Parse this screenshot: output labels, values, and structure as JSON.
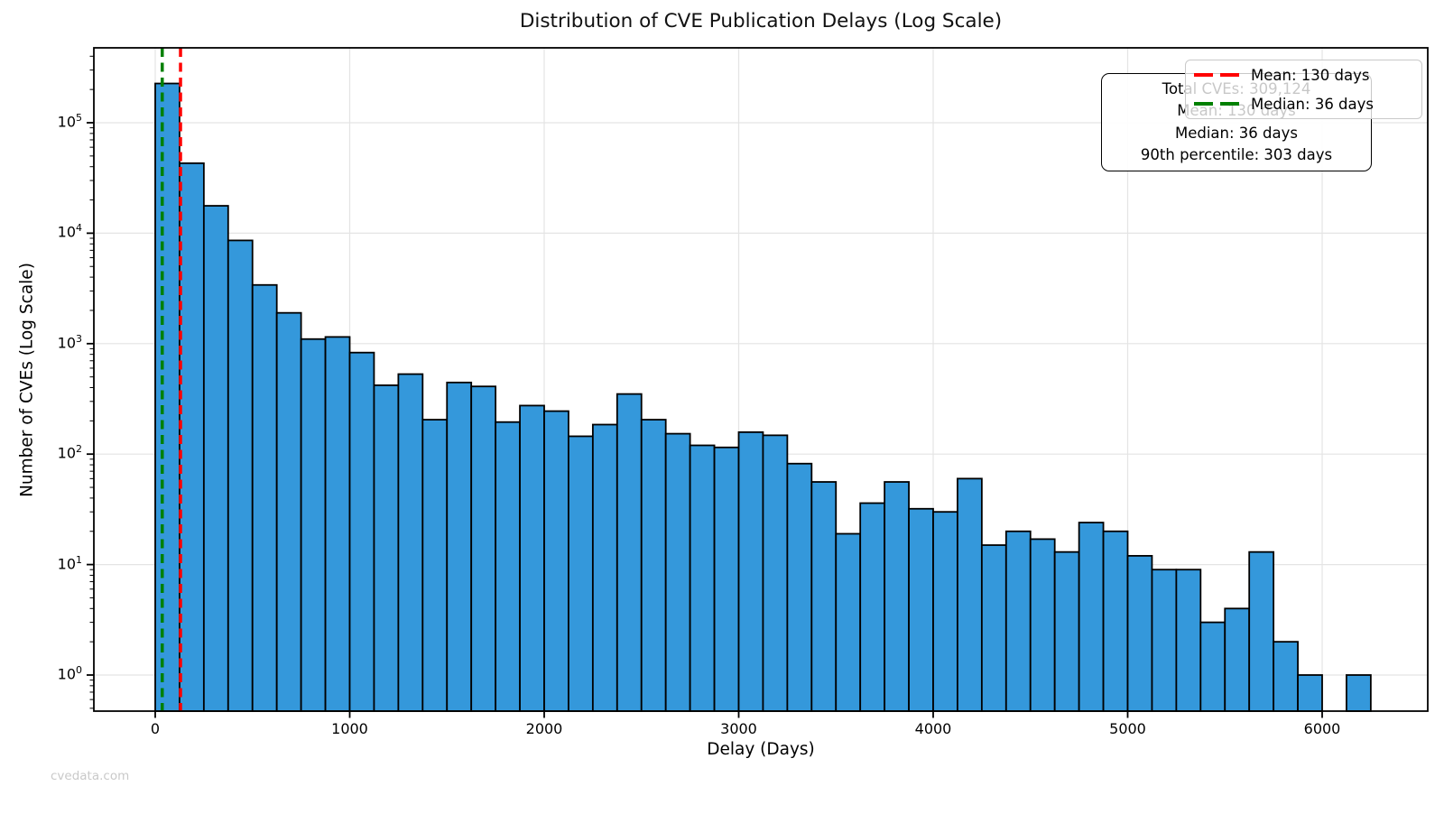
{
  "watermark": "cvedata.com",
  "stats_box": {
    "lines": [
      "Total CVEs: 309,124",
      "Mean: 130 days",
      "Median: 36 days",
      "90th percentile: 303 days"
    ]
  },
  "legend": {
    "items": [
      {
        "label": "Mean: 130 days",
        "color": "#ff0000",
        "style": "dashed"
      },
      {
        "label": "Median: 36 days",
        "color": "#008000",
        "style": "dashed"
      }
    ]
  },
  "chart_data": {
    "type": "bar",
    "subtype": "histogram",
    "title": "Distribution of CVE Publication Delays (Log Scale)",
    "xlabel": "Delay (Days)",
    "ylabel": "Number of CVEs (Log Scale)",
    "y_scale": "log",
    "bin_width_days": 125,
    "bin_start_days": 0,
    "counts": [
      226606,
      43000,
      17700,
      8600,
      3400,
      1900,
      1100,
      1150,
      830,
      420,
      530,
      205,
      445,
      410,
      195,
      275,
      245,
      145,
      185,
      350,
      205,
      153,
      120,
      115,
      158,
      148,
      82,
      56,
      19,
      36,
      56,
      32,
      30,
      60,
      15,
      20,
      17,
      13,
      24,
      20,
      12,
      9,
      9,
      3,
      4,
      13,
      2,
      1,
      0,
      1
    ],
    "x_ticks": [
      0,
      1000,
      2000,
      3000,
      4000,
      5000,
      6000
    ],
    "y_tick_exponents": [
      0,
      1,
      2,
      3,
      4,
      5
    ],
    "xlim_days": [
      -315,
      6540
    ],
    "ylim": [
      0.47,
      480000
    ],
    "grid": true,
    "legend_position": "upper right",
    "mean_days": 130,
    "median_days": 36,
    "percentile_90_days": 303,
    "total_cves": 309124,
    "colors": {
      "bar_fill": "#3498db",
      "bar_edge": "#000000",
      "mean_line": "#ff0000",
      "median_line": "#008000",
      "grid": "#e4e4e4"
    }
  }
}
